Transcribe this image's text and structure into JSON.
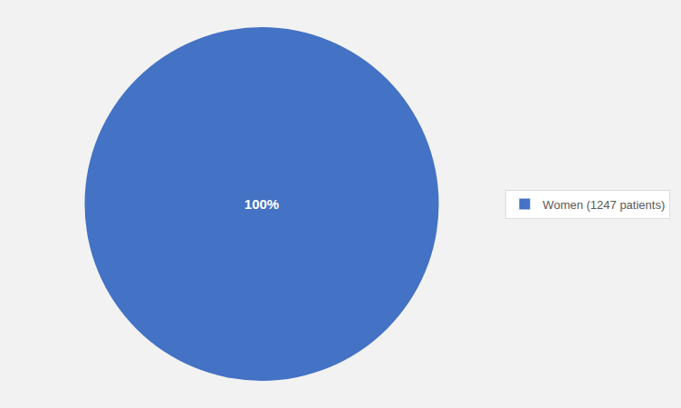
{
  "chart_data": {
    "type": "pie",
    "categories": [
      "Women (1247 patients)"
    ],
    "values": [
      100
    ],
    "value_labels": [
      "100%"
    ],
    "colors": [
      "#4472C4"
    ],
    "data_labels": true,
    "legend": "right"
  }
}
